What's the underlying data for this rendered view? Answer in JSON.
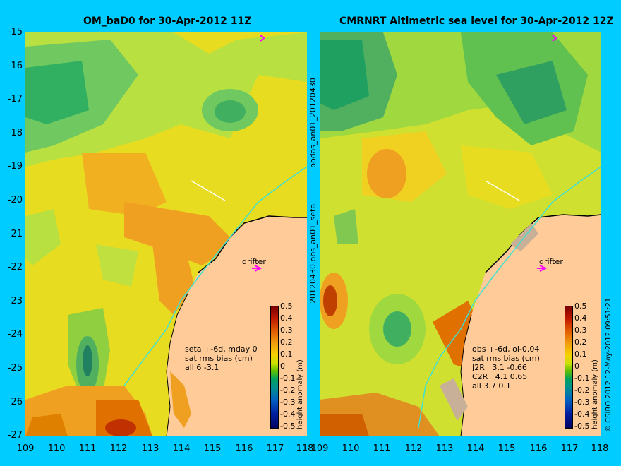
{
  "panels": [
    {
      "title": "OM_baD0 for 30-Apr-2012 11Z",
      "side_label": "bodas_an01_20120430",
      "note": "seta +-6d, mday 0\nsat rms bias (cm)\nall 6 -3.1",
      "drifter_label": "drifter"
    },
    {
      "title": "CMRNRT Altimetric sea level  for 30-Apr-2012 12Z",
      "side_label": "20120430.obs_an01_seta",
      "note": "obs +-6d, oi-0.04\nsat rms bias (cm)\nJ2R   3.1 -0.66\nC2R   4.1 0.65\nall 3.7 0.1",
      "drifter_label": "drifter"
    }
  ],
  "axes": {
    "lat_ticks": [
      "-15",
      "-16",
      "-17",
      "-18",
      "-19",
      "-20",
      "-21",
      "-22",
      "-23",
      "-24",
      "-25",
      "-26",
      "-27"
    ],
    "lon_ticks": [
      "109",
      "110",
      "111",
      "112",
      "113",
      "114",
      "115",
      "116",
      "117",
      "118"
    ]
  },
  "colorbar": {
    "ticks": [
      "0.5",
      "0.4",
      "0.3",
      "0.2",
      "0.1",
      "0",
      "-0.1",
      "-0.2",
      "-0.3",
      "-0.4",
      "-0.5"
    ],
    "label": "height anomaly (m)"
  },
  "credit": "© CSIRO 2012  12-May-2012 09:51:21",
  "colors": {
    "background": "#00ccff",
    "land": "#ffcc99",
    "drifter": "#ff00ff",
    "coast_current": "#40e0d0"
  }
}
